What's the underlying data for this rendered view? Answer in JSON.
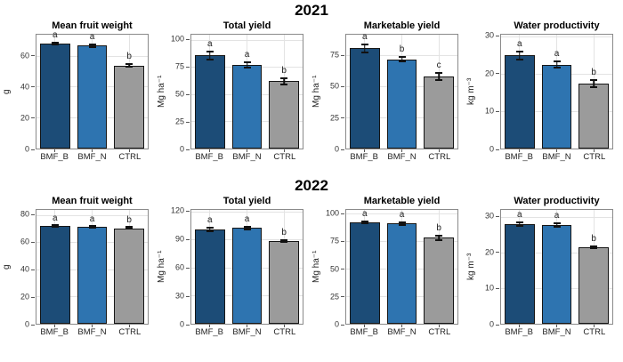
{
  "figure": {
    "row_titles": [
      "2021",
      "2022"
    ],
    "bar_colors": {
      "BMF_B": "#1c4c77",
      "BMF_N": "#2e74b0",
      "CTRL": "#9b9b9b"
    },
    "bar_border_color": "#161616",
    "grid_color": "#e3e3e3",
    "panel_border_color": "#8a8a8a"
  },
  "chart_data": [
    {
      "type": "bar",
      "group": "2021",
      "title": "Mean fruit weight",
      "ylabel": "g",
      "ylim": [
        0,
        74
      ],
      "yticks": [
        0,
        20,
        40,
        60
      ],
      "grid": true,
      "categories": [
        "BMF_B",
        "BMF_N",
        "CTRL"
      ],
      "values": [
        68,
        67,
        54
      ],
      "errors": [
        1.2,
        1.5,
        1.5
      ],
      "sig_letters": [
        "a",
        "a",
        "b"
      ]
    },
    {
      "type": "bar",
      "group": "2021",
      "title": "Total yield",
      "ylabel": "Mg ha⁻¹",
      "ylim": [
        0,
        105
      ],
      "yticks": [
        0,
        25,
        50,
        75,
        100
      ],
      "grid": true,
      "categories": [
        "BMF_B",
        "BMF_N",
        "CTRL"
      ],
      "values": [
        86,
        77,
        62
      ],
      "errors": [
        4.5,
        3,
        4
      ],
      "sig_letters": [
        "a",
        "a",
        "b"
      ]
    },
    {
      "type": "bar",
      "group": "2021",
      "title": "Marketable yield",
      "ylabel": "Mg ha⁻¹",
      "ylim": [
        0,
        92
      ],
      "yticks": [
        0,
        25,
        50,
        75
      ],
      "grid": true,
      "categories": [
        "BMF_B",
        "BMF_N",
        "CTRL"
      ],
      "values": [
        81,
        72,
        58
      ],
      "errors": [
        4,
        2.5,
        3.5
      ],
      "sig_letters": [
        "a",
        "b",
        "c"
      ]
    },
    {
      "type": "bar",
      "group": "2021",
      "title": "Water productivity",
      "ylabel": "kg m⁻³",
      "ylim": [
        0,
        30.5
      ],
      "yticks": [
        0,
        10,
        20,
        30
      ],
      "grid": true,
      "categories": [
        "BMF_B",
        "BMF_N",
        "CTRL"
      ],
      "values": [
        25,
        22.5,
        17.5
      ],
      "errors": [
        1.3,
        1,
        1.2
      ],
      "sig_letters": [
        "a",
        "a",
        "b"
      ]
    },
    {
      "type": "bar",
      "group": "2022",
      "title": "Mean fruit weight",
      "ylabel": "g",
      "ylim": [
        0,
        84
      ],
      "yticks": [
        0,
        20,
        40,
        60,
        80
      ],
      "grid": true,
      "categories": [
        "BMF_B",
        "BMF_N",
        "CTRL"
      ],
      "values": [
        72,
        71.5,
        70.5
      ],
      "errors": [
        1,
        1,
        1
      ],
      "sig_letters": [
        "a",
        "a",
        "b"
      ]
    },
    {
      "type": "bar",
      "group": "2022",
      "title": "Total yield",
      "ylabel": "Mg ha⁻¹",
      "ylim": [
        0,
        122
      ],
      "yticks": [
        0,
        30,
        60,
        90,
        120
      ],
      "grid": true,
      "categories": [
        "BMF_B",
        "BMF_N",
        "CTRL"
      ],
      "values": [
        101,
        102.5,
        88.5
      ],
      "errors": [
        2.5,
        2.5,
        2
      ],
      "sig_letters": [
        "a",
        "a",
        "b"
      ]
    },
    {
      "type": "bar",
      "group": "2022",
      "title": "Marketable yield",
      "ylabel": "Mg ha⁻¹",
      "ylim": [
        0,
        104
      ],
      "yticks": [
        0,
        25,
        50,
        75,
        100
      ],
      "grid": true,
      "categories": [
        "BMF_B",
        "BMF_N",
        "CTRL"
      ],
      "values": [
        92.5,
        91.5,
        78.5
      ],
      "errors": [
        1.5,
        2,
        3
      ],
      "sig_letters": [
        "a",
        "a",
        "b"
      ]
    },
    {
      "type": "bar",
      "group": "2022",
      "title": "Water productivity",
      "ylabel": "kg m⁻³",
      "ylim": [
        0,
        32
      ],
      "yticks": [
        0,
        10,
        20,
        30
      ],
      "grid": true,
      "categories": [
        "BMF_B",
        "BMF_N",
        "CTRL"
      ],
      "values": [
        28,
        27.8,
        21.5
      ],
      "errors": [
        0.8,
        0.7,
        0.6
      ],
      "sig_letters": [
        "a",
        "a",
        "b"
      ]
    }
  ]
}
